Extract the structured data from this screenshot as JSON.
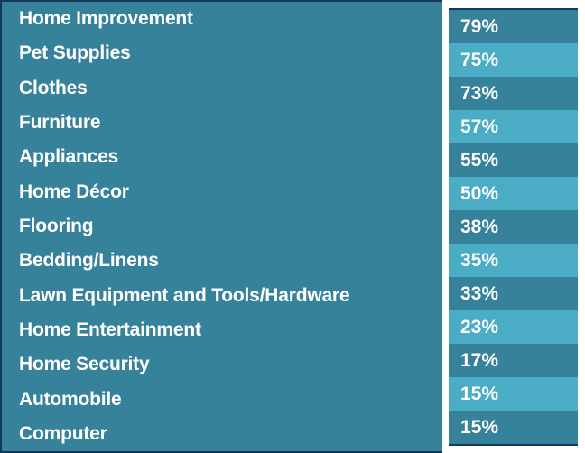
{
  "chart_data": {
    "type": "table",
    "rows": [
      {
        "label": "Home Improvement",
        "value": 79,
        "value_label": "79%"
      },
      {
        "label": "Pet Supplies",
        "value": 75,
        "value_label": "75%"
      },
      {
        "label": "Clothes",
        "value": 73,
        "value_label": "73%"
      },
      {
        "label": "Furniture",
        "value": 57,
        "value_label": "57%"
      },
      {
        "label": "Appliances",
        "value": 55,
        "value_label": "55%"
      },
      {
        "label": "Home Décor",
        "value": 50,
        "value_label": "50%"
      },
      {
        "label": "Flooring",
        "value": 38,
        "value_label": "38%"
      },
      {
        "label": "Bedding/Linens",
        "value": 35,
        "value_label": "35%"
      },
      {
        "label": "Lawn Equipment and Tools/Hardware",
        "value": 33,
        "value_label": "33%"
      },
      {
        "label": "Home Entertainment",
        "value": 23,
        "value_label": "23%"
      },
      {
        "label": "Home Security",
        "value": 17,
        "value_label": "17%"
      },
      {
        "label": "Automobile",
        "value": 15,
        "value_label": "15%"
      },
      {
        "label": "Computer",
        "value": 15,
        "value_label": "15%"
      }
    ],
    "legend": "none",
    "grid": "off"
  },
  "colors": {
    "teal_dark": "#37829B",
    "teal_light": "#4BACC6",
    "border_navy": "#17365D",
    "text": "#FFFFFF",
    "background": "#FFFFFF"
  }
}
